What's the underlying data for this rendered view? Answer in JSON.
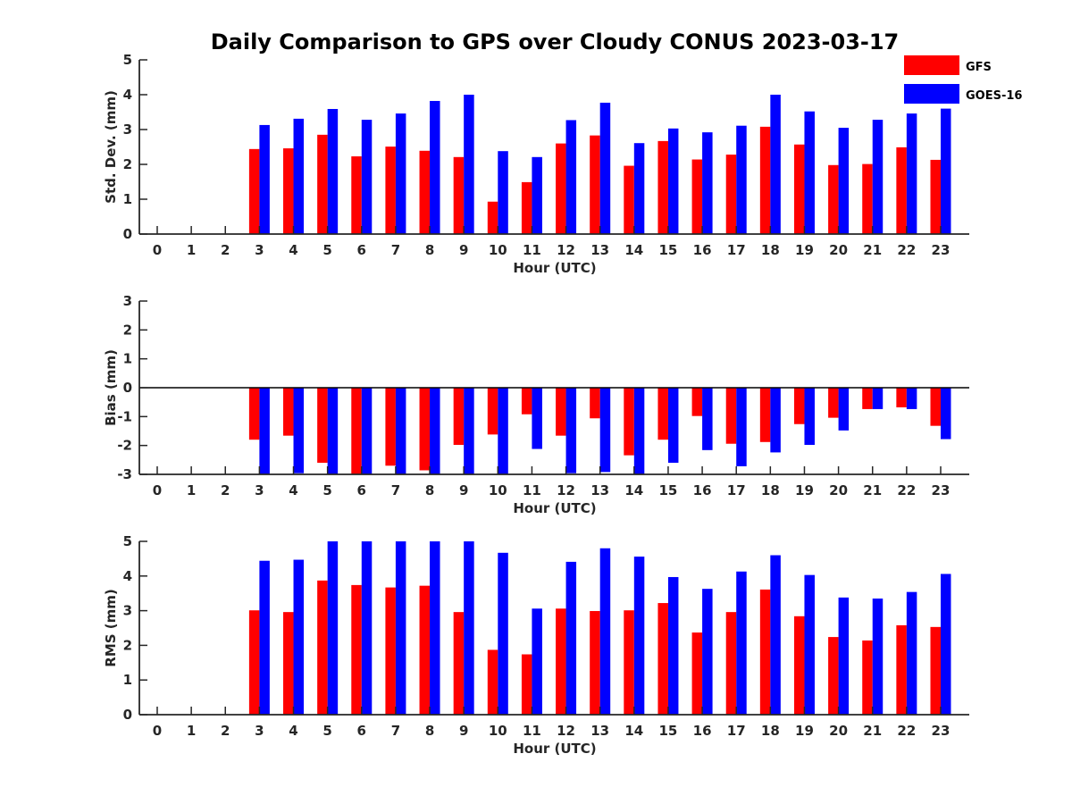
{
  "title": "Daily Comparison to GPS over Cloudy CONUS 2023-03-17",
  "legend": [
    {
      "name": "GFS",
      "color": "#ff0000"
    },
    {
      "name": "GOES-16",
      "color": "#0000ff"
    }
  ],
  "chart_data": [
    {
      "type": "bar",
      "xlabel": "Hour (UTC)",
      "ylabel": "Std. Dev. (mm)",
      "ylim": [
        0,
        5
      ],
      "yticks": [
        0,
        1,
        2,
        3,
        4,
        5
      ],
      "categories": [
        "0",
        "1",
        "2",
        "3",
        "4",
        "5",
        "6",
        "7",
        "8",
        "9",
        "10",
        "11",
        "12",
        "13",
        "14",
        "15",
        "16",
        "17",
        "18",
        "19",
        "20",
        "21",
        "22",
        "23"
      ],
      "series": [
        {
          "name": "GFS",
          "color": "#ff0000",
          "values": [
            0,
            0,
            0,
            2.44,
            2.46,
            2.85,
            2.23,
            2.51,
            2.39,
            2.21,
            0.93,
            1.49,
            2.6,
            2.83,
            1.96,
            2.67,
            2.14,
            2.28,
            3.08,
            2.57,
            1.98,
            2.01,
            2.49,
            2.13
          ]
        },
        {
          "name": "GOES-16",
          "color": "#0000ff",
          "values": [
            0,
            0,
            0,
            3.13,
            3.31,
            3.59,
            3.28,
            3.46,
            3.82,
            4.0,
            2.38,
            2.21,
            3.27,
            3.77,
            2.61,
            3.03,
            2.92,
            3.11,
            4.0,
            3.52,
            3.05,
            3.28,
            3.46,
            3.6
          ]
        }
      ]
    },
    {
      "type": "bar",
      "xlabel": "Hour (UTC)",
      "ylabel": "Bias (mm)",
      "ylim": [
        -3,
        3
      ],
      "yticks": [
        -3,
        -2,
        -1,
        0,
        1,
        2,
        3
      ],
      "categories": [
        "0",
        "1",
        "2",
        "3",
        "4",
        "5",
        "6",
        "7",
        "8",
        "9",
        "10",
        "11",
        "12",
        "13",
        "14",
        "15",
        "16",
        "17",
        "18",
        "19",
        "20",
        "21",
        "22",
        "23"
      ],
      "series": [
        {
          "name": "GFS",
          "color": "#ff0000",
          "values": [
            0,
            0,
            0,
            -1.8,
            -1.66,
            -2.6,
            -3.0,
            -2.7,
            -2.86,
            -1.98,
            -1.62,
            -0.92,
            -1.66,
            -1.06,
            -2.34,
            -1.8,
            -0.98,
            -1.94,
            -1.88,
            -1.26,
            -1.04,
            -0.74,
            -0.68,
            -1.32
          ]
        },
        {
          "name": "GOES-16",
          "color": "#0000ff",
          "values": [
            0,
            0,
            0,
            -3.0,
            -2.96,
            -3.0,
            -3.0,
            -3.0,
            -3.0,
            -3.0,
            -3.0,
            -2.12,
            -2.96,
            -2.92,
            -3.0,
            -2.6,
            -2.16,
            -2.72,
            -2.24,
            -1.98,
            -1.48,
            -0.74,
            -0.74,
            -1.78
          ]
        }
      ]
    },
    {
      "type": "bar",
      "xlabel": "Hour (UTC)",
      "ylabel": "RMS (mm)",
      "ylim": [
        0,
        5
      ],
      "yticks": [
        0,
        1,
        2,
        3,
        4,
        5
      ],
      "categories": [
        "0",
        "1",
        "2",
        "3",
        "4",
        "5",
        "6",
        "7",
        "8",
        "9",
        "10",
        "11",
        "12",
        "13",
        "14",
        "15",
        "16",
        "17",
        "18",
        "19",
        "20",
        "21",
        "22",
        "23"
      ],
      "series": [
        {
          "name": "GFS",
          "color": "#ff0000",
          "values": [
            0,
            0,
            0,
            3.01,
            2.96,
            3.87,
            3.74,
            3.67,
            3.72,
            2.96,
            1.87,
            1.74,
            3.06,
            2.99,
            3.01,
            3.22,
            2.37,
            2.96,
            3.61,
            2.84,
            2.24,
            2.14,
            2.58,
            2.53
          ]
        },
        {
          "name": "GOES-16",
          "color": "#0000ff",
          "values": [
            0,
            0,
            0,
            4.44,
            4.47,
            5.0,
            5.0,
            5.0,
            5.0,
            5.0,
            4.67,
            3.06,
            4.41,
            4.8,
            4.56,
            3.97,
            3.63,
            4.13,
            4.6,
            4.03,
            3.38,
            3.35,
            3.54,
            4.06
          ]
        }
      ]
    }
  ]
}
